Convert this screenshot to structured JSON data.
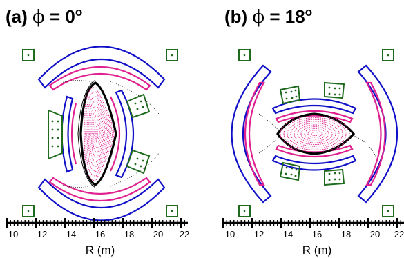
{
  "panels": [
    {
      "id": "a",
      "title_prefix": "(a) ",
      "phi_symbol": "ϕ",
      "title_eq": " = 0",
      "title_degree": "o",
      "axis_label": "R (m)",
      "ticks": [
        "10",
        "12",
        "14",
        "16",
        "18",
        "20",
        "22"
      ]
    },
    {
      "id": "b",
      "title_prefix": "(b) ",
      "phi_symbol": "ϕ",
      "title_eq": " = 18",
      "title_degree": "o",
      "axis_label": "R (m)",
      "ticks": [
        "10",
        "12",
        "14",
        "16",
        "18",
        "20",
        "22"
      ]
    }
  ],
  "colors": {
    "outer_coil": "#1010c8",
    "inner_wall": "#e0208f",
    "auxiliary_coil": "#1e6b1e",
    "field_lines": "#000000",
    "flux_surfaces": "#e0208f"
  }
}
